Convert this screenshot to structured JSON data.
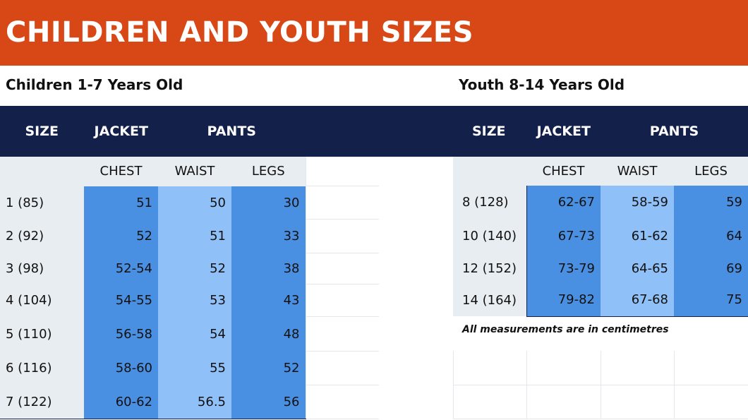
{
  "page": {
    "title": "CHILDREN AND YOUTH SIZES",
    "children_heading": "Children 1-7 Years Old",
    "youth_heading": "Youth 8-14 Years Old",
    "note": "All measurements are in centimetres"
  },
  "headers": {
    "size": "SIZE",
    "jacket": "JACKET",
    "pants": "PANTS",
    "chest": "CHEST",
    "waist": "WAIST",
    "legs": "LEGS"
  },
  "children": {
    "rows": [
      {
        "size": "1 (85)",
        "chest": "51",
        "waist": "50",
        "legs": "30"
      },
      {
        "size": "2 (92)",
        "chest": "52",
        "waist": "51",
        "legs": "33"
      },
      {
        "size": "3 (98)",
        "chest": "52-54",
        "waist": "52",
        "legs": "38"
      },
      {
        "size": "4 (104)",
        "chest": "54-55",
        "waist": "53",
        "legs": "43"
      },
      {
        "size": "5 (110)",
        "chest": "56-58",
        "waist": "54",
        "legs": "48"
      },
      {
        "size": "6 (116)",
        "chest": "58-60",
        "waist": "55",
        "legs": "52"
      },
      {
        "size": "7 (122)",
        "chest": "60-62",
        "waist": "56.5",
        "legs": "56"
      }
    ]
  },
  "youth": {
    "rows": [
      {
        "size": "8 (128)",
        "chest": "62-67",
        "waist": "58-59",
        "legs": "59"
      },
      {
        "size": "10 (140)",
        "chest": "67-73",
        "waist": "61-62",
        "legs": "64"
      },
      {
        "size": "12 (152)",
        "chest": "73-79",
        "waist": "64-65",
        "legs": "69"
      },
      {
        "size": "14 (164)",
        "chest": "79-82",
        "waist": "67-68",
        "legs": "75"
      }
    ]
  },
  "colors": {
    "banner": "#d84816",
    "header_navy": "#13214a",
    "label_grey": "#e8edf1",
    "chest_blue": "#4a90e2",
    "waist_light_blue": "#8fc0f7",
    "legs_blue": "#4a90e2"
  }
}
